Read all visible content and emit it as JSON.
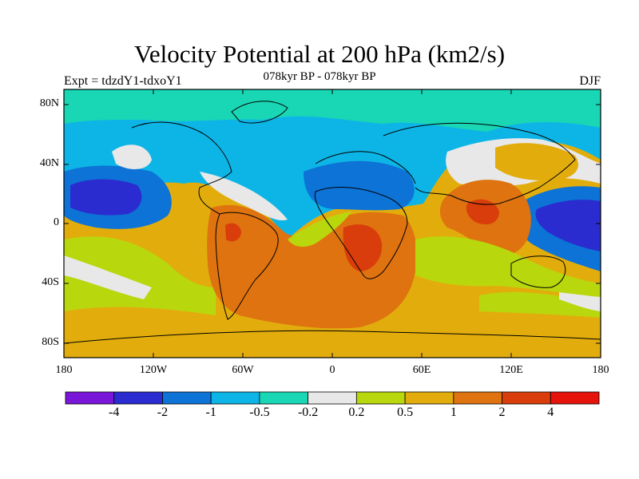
{
  "title": "Velocity Potential at 200 hPa (km2/s)",
  "subtitle": "078kyr BP - 078kyr BP",
  "left_label": "Expt = tdzdY1-tdxoY1",
  "right_label": "DJF",
  "lat_labels": [
    "80N",
    "40N",
    "0",
    "40S",
    "80S"
  ],
  "lon_labels": [
    "180",
    "120W",
    "60W",
    "0",
    "60E",
    "120E",
    "180"
  ],
  "colorbar": {
    "colors": [
      "#7a16d8",
      "#2a2ccf",
      "#0d73d6",
      "#0db5e6",
      "#19d6b4",
      "#e8e8e8",
      "#b9d70d",
      "#e2ad0c",
      "#de7310",
      "#d93d0b",
      "#e6120c"
    ],
    "labels": [
      "-4",
      "-2",
      "-1",
      "-0.5",
      "-0.2",
      "0.2",
      "0.5",
      "1",
      "2",
      "4"
    ]
  },
  "colors": {
    "ocean_fill": "#e2ad0c",
    "neg_light": "#19d6b4",
    "neg_mid": "#0db5e6",
    "neg_dark": "#0d73d6",
    "neg_strong": "#2a2ccf",
    "neutral": "#e8e8e8",
    "pos_light": "#b9d70d",
    "pos_mid": "#e2ad0c",
    "pos_strong": "#de7310",
    "pos_max": "#d93d0b"
  }
}
